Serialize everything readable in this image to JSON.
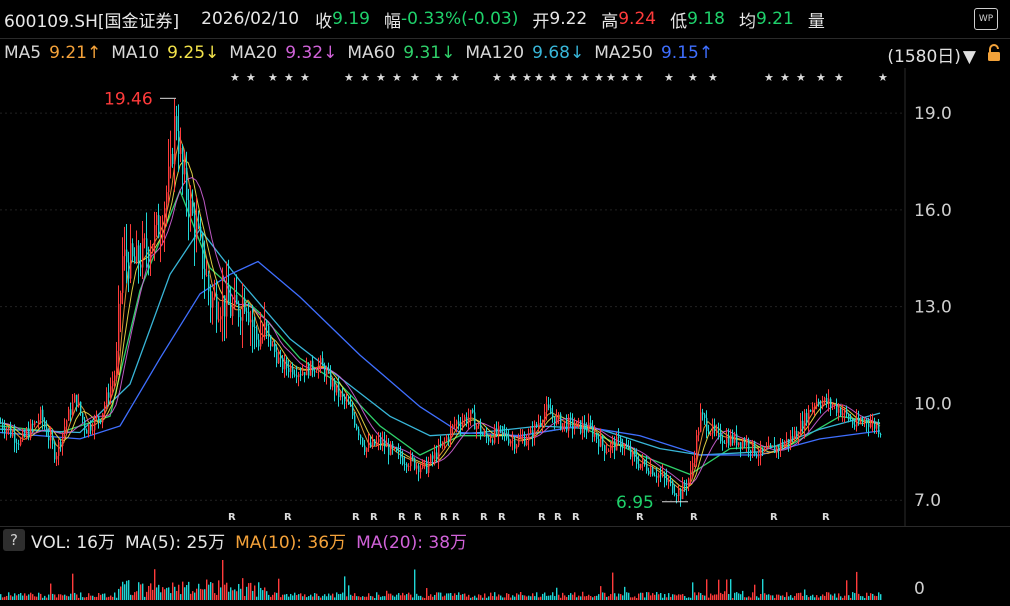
{
  "header": {
    "symbol": "600109.SH[国金证券]",
    "date": "2026/02/10",
    "close_label": "收",
    "close": "9.19",
    "change_label": "幅",
    "change": "-0.33%(-0.03)",
    "open_label": "开",
    "open": "9.22",
    "high_label": "高",
    "high": "9.24",
    "low_label": "低",
    "low": "9.18",
    "avg_label": "均",
    "avg": "9.21",
    "vol_label": "量",
    "wp_label": "WP"
  },
  "ma_legend": [
    {
      "label": "MA5",
      "value": "9.21↑",
      "color": "#f4a23a"
    },
    {
      "label": "MA10",
      "value": "9.25↓",
      "color": "#f2e24a"
    },
    {
      "label": "MA20",
      "value": "9.32↓",
      "color": "#d062d8"
    },
    {
      "label": "MA60",
      "value": "9.31↓",
      "color": "#2fd16a"
    },
    {
      "label": "MA120",
      "value": "9.68↓",
      "color": "#38b6d8"
    },
    {
      "label": "MA250",
      "value": "9.15↑",
      "color": "#3f6fff"
    }
  ],
  "period": "(1580日)",
  "volume": {
    "help": "?",
    "vol_label": "VOL: 16万",
    "ma5_label": "MA(5): 25万",
    "ma10_label": "MA(10): 36万",
    "ma20_label": "MA(20): 38万",
    "axis_zero": "0"
  },
  "chart_data": {
    "type": "candlestick",
    "ylim": [
      6.2,
      20.4
    ],
    "y_ticks": [
      "19.0",
      "16.0",
      "13.0",
      "10.0",
      "7.0"
    ],
    "annotations": [
      {
        "text": "19.46",
        "value": 19.46,
        "kind": "high"
      },
      {
        "text": "6.95",
        "value": 6.95,
        "kind": "low"
      }
    ],
    "close_path": [
      [
        0,
        9.4
      ],
      [
        20,
        8.8
      ],
      [
        40,
        9.6
      ],
      [
        55,
        8.4
      ],
      [
        65,
        9.4
      ],
      [
        75,
        10.2
      ],
      [
        85,
        9.2
      ],
      [
        100,
        9.6
      ],
      [
        115,
        11.0
      ],
      [
        122,
        14.5
      ],
      [
        135,
        14.3
      ],
      [
        150,
        15.0
      ],
      [
        160,
        15.6
      ],
      [
        170,
        17.2
      ],
      [
        175,
        19.0
      ],
      [
        182,
        17.0
      ],
      [
        190,
        16.0
      ],
      [
        200,
        14.8
      ],
      [
        210,
        13.2
      ],
      [
        220,
        13.2
      ],
      [
        235,
        12.8
      ],
      [
        245,
        13.4
      ],
      [
        255,
        12.0
      ],
      [
        265,
        12.2
      ],
      [
        280,
        11.2
      ],
      [
        300,
        11.0
      ],
      [
        320,
        11.2
      ],
      [
        335,
        10.4
      ],
      [
        350,
        9.8
      ],
      [
        365,
        8.6
      ],
      [
        380,
        8.8
      ],
      [
        395,
        8.4
      ],
      [
        410,
        8.2
      ],
      [
        425,
        8.0
      ],
      [
        440,
        8.6
      ],
      [
        455,
        9.4
      ],
      [
        470,
        9.6
      ],
      [
        485,
        8.9
      ],
      [
        500,
        9.1
      ],
      [
        515,
        8.8
      ],
      [
        530,
        9.0
      ],
      [
        545,
        9.8
      ],
      [
        560,
        9.4
      ],
      [
        575,
        9.3
      ],
      [
        590,
        9.2
      ],
      [
        605,
        8.6
      ],
      [
        620,
        8.8
      ],
      [
        635,
        8.2
      ],
      [
        650,
        8.0
      ],
      [
        665,
        7.6
      ],
      [
        680,
        7.2
      ],
      [
        690,
        7.8
      ],
      [
        700,
        9.6
      ],
      [
        715,
        9.0
      ],
      [
        730,
        8.9
      ],
      [
        745,
        8.8
      ],
      [
        760,
        8.4
      ],
      [
        775,
        8.6
      ],
      [
        790,
        8.9
      ],
      [
        800,
        9.3
      ],
      [
        815,
        10.1
      ],
      [
        828,
        10.0
      ],
      [
        840,
        9.8
      ],
      [
        855,
        9.3
      ],
      [
        865,
        9.5
      ],
      [
        875,
        9.3
      ],
      [
        880,
        9.19
      ]
    ],
    "ma_lines": [
      {
        "name": "MA60",
        "color": "#2fd16a",
        "path": [
          [
            0,
            9.3
          ],
          [
            60,
            9.1
          ],
          [
            110,
            9.6
          ],
          [
            140,
            13.5
          ],
          [
            180,
            16.6
          ],
          [
            210,
            14.2
          ],
          [
            260,
            12.8
          ],
          [
            300,
            11.4
          ],
          [
            340,
            10.6
          ],
          [
            380,
            9.3
          ],
          [
            420,
            8.4
          ],
          [
            460,
            9.0
          ],
          [
            520,
            9.0
          ],
          [
            580,
            9.3
          ],
          [
            640,
            8.4
          ],
          [
            690,
            7.8
          ],
          [
            730,
            8.6
          ],
          [
            790,
            8.7
          ],
          [
            840,
            9.6
          ],
          [
            880,
            9.4
          ]
        ]
      },
      {
        "name": "MA120",
        "color": "#38b6d8",
        "path": [
          [
            0,
            9.2
          ],
          [
            80,
            9.1
          ],
          [
            130,
            10.6
          ],
          [
            170,
            14.0
          ],
          [
            200,
            15.4
          ],
          [
            240,
            13.8
          ],
          [
            290,
            12.0
          ],
          [
            340,
            10.8
          ],
          [
            390,
            9.6
          ],
          [
            430,
            9.0
          ],
          [
            480,
            9.1
          ],
          [
            540,
            9.3
          ],
          [
            600,
            9.2
          ],
          [
            660,
            8.6
          ],
          [
            700,
            8.4
          ],
          [
            760,
            8.5
          ],
          [
            820,
            9.2
          ],
          [
            880,
            9.7
          ]
        ]
      },
      {
        "name": "MA250",
        "color": "#3f6fff",
        "path": [
          [
            0,
            9.1
          ],
          [
            80,
            8.9
          ],
          [
            120,
            9.3
          ],
          [
            160,
            11.4
          ],
          [
            200,
            13.4
          ],
          [
            230,
            14.0
          ],
          [
            258,
            14.4
          ],
          [
            300,
            13.3
          ],
          [
            360,
            11.5
          ],
          [
            420,
            9.9
          ],
          [
            460,
            9.1
          ],
          [
            520,
            9.0
          ],
          [
            580,
            9.3
          ],
          [
            640,
            9.0
          ],
          [
            700,
            8.4
          ],
          [
            760,
            8.4
          ],
          [
            820,
            8.9
          ],
          [
            880,
            9.15
          ]
        ]
      }
    ],
    "star_marks_x": [
      230,
      246,
      268,
      284,
      300,
      344,
      360,
      376,
      392,
      410,
      434,
      450,
      492,
      508,
      522,
      534,
      548,
      564,
      580,
      594,
      606,
      620,
      634,
      664,
      688,
      708,
      764,
      780,
      796,
      816,
      834,
      878
    ],
    "r_marks_x": [
      228,
      284,
      352,
      370,
      398,
      414,
      440,
      452,
      480,
      498,
      538,
      554,
      572,
      636,
      690,
      770,
      822
    ]
  }
}
